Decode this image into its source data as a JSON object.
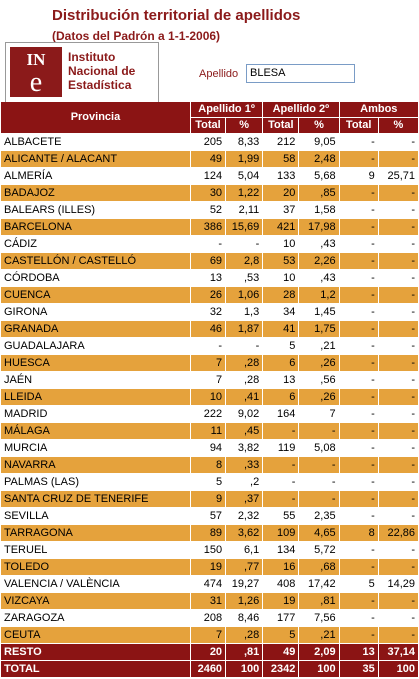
{
  "header": {
    "title": "Distribución territorial de apellidos",
    "subtitle": "(Datos del Padrón a 1-1-2006)"
  },
  "logo": {
    "mark": [
      "IN",
      "e"
    ],
    "lines": [
      "Instituto",
      "Nacional de",
      "Estadística"
    ]
  },
  "search": {
    "label": "Apellido",
    "value": "BLESA"
  },
  "table": {
    "groups": [
      "Provincia",
      "Apellido 1º",
      "Apellido 2º",
      "Ambos"
    ],
    "subheaders": [
      "Total",
      "%",
      "Total",
      "%",
      "Total",
      "%"
    ],
    "rows": [
      [
        "ALBACETE",
        "205",
        "8,33",
        "212",
        "9,05",
        "-",
        "-"
      ],
      [
        "ALICANTE / ALACANT",
        "49",
        "1,99",
        "58",
        "2,48",
        "-",
        "-"
      ],
      [
        "ALMERÍA",
        "124",
        "5,04",
        "133",
        "5,68",
        "9",
        "25,71"
      ],
      [
        "BADAJOZ",
        "30",
        "1,22",
        "20",
        ",85",
        "-",
        "-"
      ],
      [
        "BALEARS (ILLES)",
        "52",
        "2,11",
        "37",
        "1,58",
        "-",
        "-"
      ],
      [
        "BARCELONA",
        "386",
        "15,69",
        "421",
        "17,98",
        "-",
        "-"
      ],
      [
        "CÁDIZ",
        "-",
        "-",
        "10",
        ",43",
        "-",
        "-"
      ],
      [
        "CASTELLÓN / CASTELLÓ",
        "69",
        "2,8",
        "53",
        "2,26",
        "-",
        "-"
      ],
      [
        "CÓRDOBA",
        "13",
        ",53",
        "10",
        ",43",
        "-",
        "-"
      ],
      [
        "CUENCA",
        "26",
        "1,06",
        "28",
        "1,2",
        "-",
        "-"
      ],
      [
        "GIRONA",
        "32",
        "1,3",
        "34",
        "1,45",
        "-",
        "-"
      ],
      [
        "GRANADA",
        "46",
        "1,87",
        "41",
        "1,75",
        "-",
        "-"
      ],
      [
        "GUADALAJARA",
        "-",
        "-",
        "5",
        ",21",
        "-",
        "-"
      ],
      [
        "HUESCA",
        "7",
        ",28",
        "6",
        ",26",
        "-",
        "-"
      ],
      [
        "JAÉN",
        "7",
        ",28",
        "13",
        ",56",
        "-",
        "-"
      ],
      [
        "LLEIDA",
        "10",
        ",41",
        "6",
        ",26",
        "-",
        "-"
      ],
      [
        "MADRID",
        "222",
        "9,02",
        "164",
        "7",
        "-",
        "-"
      ],
      [
        "MÁLAGA",
        "11",
        ",45",
        "-",
        "-",
        "-",
        "-"
      ],
      [
        "MURCIA",
        "94",
        "3,82",
        "119",
        "5,08",
        "-",
        "-"
      ],
      [
        "NAVARRA",
        "8",
        ",33",
        "-",
        "-",
        "-",
        "-"
      ],
      [
        "PALMAS (LAS)",
        "5",
        ",2",
        "-",
        "-",
        "-",
        "-"
      ],
      [
        "SANTA CRUZ DE TENERIFE",
        "9",
        ",37",
        "-",
        "-",
        "-",
        "-"
      ],
      [
        "SEVILLA",
        "57",
        "2,32",
        "55",
        "2,35",
        "-",
        "-"
      ],
      [
        "TARRAGONA",
        "89",
        "3,62",
        "109",
        "4,65",
        "8",
        "22,86"
      ],
      [
        "TERUEL",
        "150",
        "6,1",
        "134",
        "5,72",
        "-",
        "-"
      ],
      [
        "TOLEDO",
        "19",
        ",77",
        "16",
        ",68",
        "-",
        "-"
      ],
      [
        "VALENCIA / VALÈNCIA",
        "474",
        "19,27",
        "408",
        "17,42",
        "5",
        "14,29"
      ],
      [
        "VIZCAYA",
        "31",
        "1,26",
        "19",
        ",81",
        "-",
        "-"
      ],
      [
        "ZARAGOZA",
        "208",
        "8,46",
        "177",
        "7,56",
        "-",
        "-"
      ],
      [
        "CEUTA",
        "7",
        ",28",
        "5",
        ",21",
        "-",
        "-"
      ]
    ],
    "footer_rows": [
      [
        "RESTO",
        "20",
        ",81",
        "49",
        "2,09",
        "13",
        "37,14"
      ],
      [
        "TOTAL",
        "2460",
        "100",
        "2342",
        "100",
        "35",
        "100"
      ]
    ]
  }
}
